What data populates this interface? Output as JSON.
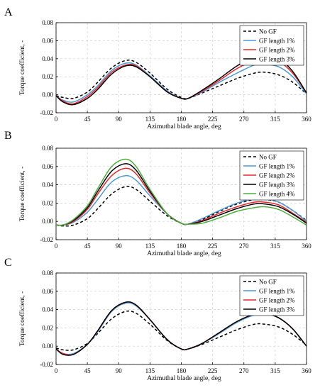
{
  "chart_data": [
    {
      "panel_label": "A",
      "type": "line",
      "xlabel": "Azimuthal blade angle, deg",
      "ylabel": "Torque coefficient, -",
      "xlim": [
        0,
        360
      ],
      "ylim": [
        -0.02,
        0.08
      ],
      "xticks": [
        "0",
        "45",
        "90",
        "135",
        "180",
        "225",
        "270",
        "315",
        "360"
      ],
      "yticks": [
        "-0.02",
        "0.00",
        "0.02",
        "0.04",
        "0.06",
        "0.08"
      ],
      "grid": true,
      "legend_position": "top-right",
      "series": [
        {
          "name": "No GF",
          "color": "#000000",
          "dash": "dashed",
          "x": [
            0,
            10,
            25,
            45,
            60,
            80,
            100,
            115,
            135,
            160,
            180,
            190,
            210,
            235,
            260,
            285,
            300,
            320,
            340,
            360
          ],
          "y": [
            -0.001,
            -0.003,
            -0.004,
            0.003,
            0.014,
            0.03,
            0.038,
            0.036,
            0.024,
            0.006,
            -0.003,
            -0.004,
            0.002,
            0.01,
            0.018,
            0.024,
            0.025,
            0.022,
            0.014,
            0.001
          ]
        },
        {
          "name": "GF length 1%",
          "color": "#4a9ad8",
          "dash": "solid",
          "x": [
            0,
            10,
            25,
            45,
            60,
            80,
            100,
            115,
            135,
            160,
            180,
            190,
            210,
            235,
            260,
            285,
            300,
            320,
            340,
            360
          ],
          "y": [
            -0.001,
            -0.006,
            -0.008,
            0.0,
            0.01,
            0.027,
            0.035,
            0.033,
            0.021,
            0.004,
            -0.004,
            -0.004,
            0.003,
            0.014,
            0.024,
            0.033,
            0.034,
            0.031,
            0.02,
            0.001
          ]
        },
        {
          "name": "GF length 2%",
          "color": "#e8272b",
          "dash": "solid",
          "x": [
            0,
            10,
            25,
            45,
            60,
            80,
            100,
            115,
            135,
            160,
            180,
            190,
            210,
            235,
            260,
            285,
            300,
            320,
            340,
            360
          ],
          "y": [
            -0.001,
            -0.007,
            -0.01,
            -0.002,
            0.008,
            0.025,
            0.033,
            0.032,
            0.02,
            0.003,
            -0.004,
            -0.004,
            0.004,
            0.016,
            0.029,
            0.038,
            0.04,
            0.037,
            0.024,
            0.002
          ]
        },
        {
          "name": "GF length 3%",
          "color": "#000000",
          "dash": "solid",
          "x": [
            0,
            10,
            25,
            45,
            60,
            80,
            100,
            115,
            135,
            160,
            180,
            190,
            210,
            235,
            260,
            285,
            300,
            320,
            340,
            360
          ],
          "y": [
            -0.001,
            -0.008,
            -0.011,
            -0.004,
            0.006,
            0.023,
            0.032,
            0.031,
            0.02,
            0.003,
            -0.004,
            -0.004,
            0.005,
            0.018,
            0.032,
            0.042,
            0.043,
            0.04,
            0.026,
            0.002
          ]
        }
      ]
    },
    {
      "panel_label": "B",
      "type": "line",
      "xlabel": "Azimuthal blade angle, deg",
      "ylabel": "Torque coefficient, -",
      "xlim": [
        0,
        360
      ],
      "ylim": [
        -0.02,
        0.08
      ],
      "xticks": [
        "0",
        "45",
        "90",
        "135",
        "180",
        "225",
        "270",
        "315",
        "360"
      ],
      "yticks": [
        "-0.02",
        "0.00",
        "0.02",
        "0.04",
        "0.06",
        "0.08"
      ],
      "grid": true,
      "legend_position": "top-right",
      "series": [
        {
          "name": "No GF",
          "color": "#000000",
          "dash": "dashed",
          "x": [
            0,
            10,
            25,
            45,
            60,
            80,
            100,
            115,
            135,
            160,
            180,
            190,
            210,
            235,
            260,
            285,
            300,
            320,
            340,
            360
          ],
          "y": [
            -0.004,
            -0.005,
            -0.004,
            0.003,
            0.014,
            0.03,
            0.038,
            0.035,
            0.022,
            0.006,
            -0.002,
            -0.003,
            0.002,
            0.011,
            0.019,
            0.024,
            0.024,
            0.021,
            0.012,
            0.001
          ]
        },
        {
          "name": "GF length 1%",
          "color": "#4a9ad8",
          "dash": "solid",
          "x": [
            0,
            10,
            25,
            45,
            60,
            80,
            100,
            115,
            135,
            160,
            180,
            190,
            210,
            235,
            260,
            285,
            300,
            320,
            340,
            360
          ],
          "y": [
            -0.004,
            -0.004,
            -0.001,
            0.01,
            0.024,
            0.043,
            0.05,
            0.045,
            0.028,
            0.008,
            -0.002,
            -0.003,
            0.003,
            0.012,
            0.02,
            0.025,
            0.025,
            0.021,
            0.012,
            0.0
          ]
        },
        {
          "name": "GF length 2%",
          "color": "#e8272b",
          "dash": "solid",
          "x": [
            0,
            10,
            25,
            45,
            60,
            80,
            100,
            115,
            135,
            160,
            180,
            190,
            210,
            235,
            260,
            285,
            300,
            320,
            340,
            360
          ],
          "y": [
            -0.004,
            -0.004,
            0.0,
            0.013,
            0.03,
            0.05,
            0.058,
            0.052,
            0.031,
            0.008,
            -0.002,
            -0.003,
            0.001,
            0.009,
            0.016,
            0.021,
            0.021,
            0.018,
            0.009,
            -0.001
          ]
        },
        {
          "name": "GF length 3%",
          "color": "#000000",
          "dash": "solid",
          "x": [
            0,
            10,
            25,
            45,
            60,
            80,
            100,
            115,
            135,
            160,
            180,
            190,
            210,
            235,
            260,
            285,
            300,
            320,
            340,
            360
          ],
          "y": [
            -0.004,
            -0.004,
            0.001,
            0.015,
            0.033,
            0.055,
            0.063,
            0.056,
            0.033,
            0.008,
            -0.002,
            -0.003,
            0.0,
            0.007,
            0.014,
            0.019,
            0.019,
            0.016,
            0.008,
            -0.002
          ]
        },
        {
          "name": "GF length 4%",
          "color": "#4caf3c",
          "dash": "solid",
          "x": [
            0,
            10,
            25,
            45,
            60,
            80,
            100,
            115,
            135,
            160,
            180,
            190,
            210,
            235,
            260,
            285,
            300,
            320,
            340,
            360
          ],
          "y": [
            -0.004,
            -0.004,
            0.002,
            0.017,
            0.036,
            0.06,
            0.068,
            0.06,
            0.035,
            0.008,
            -0.002,
            -0.003,
            -0.002,
            0.004,
            0.011,
            0.015,
            0.016,
            0.013,
            0.005,
            -0.004
          ]
        }
      ]
    },
    {
      "panel_label": "C",
      "type": "line",
      "xlabel": "Azimuthal blade angle, deg",
      "ylabel": "Torque coefficient, -",
      "xlim": [
        0,
        360
      ],
      "ylim": [
        -0.02,
        0.08
      ],
      "xticks": [
        "0",
        "45",
        "90",
        "135",
        "180",
        "225",
        "270",
        "315",
        "360"
      ],
      "yticks": [
        "-0.02",
        "0.00",
        "0.02",
        "0.04",
        "0.06",
        "0.08"
      ],
      "grid": true,
      "legend_position": "top-right",
      "series": [
        {
          "name": "No GF",
          "color": "#000000",
          "dash": "dashed",
          "x": [
            0,
            10,
            25,
            45,
            60,
            80,
            100,
            115,
            135,
            160,
            180,
            190,
            210,
            235,
            260,
            285,
            300,
            320,
            340,
            360
          ],
          "y": [
            -0.002,
            -0.004,
            -0.004,
            0.003,
            0.014,
            0.03,
            0.038,
            0.036,
            0.024,
            0.006,
            -0.003,
            -0.003,
            0.002,
            0.01,
            0.018,
            0.024,
            0.024,
            0.021,
            0.013,
            0.001
          ]
        },
        {
          "name": "GF length 1%",
          "color": "#4a9ad8",
          "dash": "solid",
          "x": [
            0,
            10,
            25,
            45,
            60,
            80,
            100,
            115,
            135,
            160,
            180,
            190,
            210,
            235,
            260,
            285,
            300,
            320,
            340,
            360
          ],
          "y": [
            -0.003,
            -0.008,
            -0.008,
            0.002,
            0.016,
            0.038,
            0.047,
            0.044,
            0.029,
            0.007,
            -0.003,
            -0.003,
            0.003,
            0.014,
            0.026,
            0.034,
            0.035,
            0.031,
            0.019,
            0.0
          ]
        },
        {
          "name": "GF length 2%",
          "color": "#e8272b",
          "dash": "solid",
          "x": [
            0,
            10,
            25,
            45,
            60,
            80,
            100,
            115,
            135,
            160,
            180,
            190,
            210,
            235,
            260,
            285,
            300,
            320,
            340,
            360
          ],
          "y": [
            -0.003,
            -0.008,
            -0.009,
            0.002,
            0.017,
            0.039,
            0.048,
            0.045,
            0.029,
            0.007,
            -0.003,
            -0.003,
            0.003,
            0.015,
            0.027,
            0.035,
            0.036,
            0.031,
            0.019,
            0.0
          ]
        },
        {
          "name": "GF length 3%",
          "color": "#000000",
          "dash": "solid",
          "x": [
            0,
            10,
            25,
            45,
            60,
            80,
            100,
            115,
            135,
            160,
            180,
            190,
            210,
            235,
            260,
            285,
            300,
            320,
            340,
            360
          ],
          "y": [
            -0.003,
            -0.009,
            -0.009,
            0.002,
            0.017,
            0.039,
            0.048,
            0.045,
            0.029,
            0.007,
            -0.003,
            -0.003,
            0.003,
            0.015,
            0.027,
            0.035,
            0.036,
            0.031,
            0.019,
            0.0
          ]
        }
      ]
    }
  ]
}
